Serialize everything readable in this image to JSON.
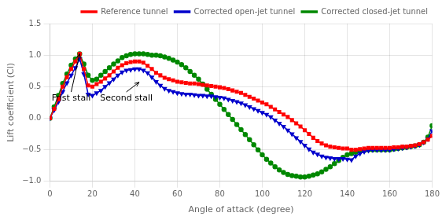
{
  "chart_data": {
    "type": "line",
    "xlabel": "Angle of attack (degree)",
    "ylabel": "Lift coefficient (Cl)",
    "xlim": [
      0,
      180
    ],
    "ylim": [
      -1.0,
      1.5
    ],
    "xticks": [
      0,
      20,
      40,
      60,
      80,
      100,
      120,
      140,
      160,
      180
    ],
    "yticks": [
      {
        "value": -1.0,
        "label": "−1.0"
      },
      {
        "value": -0.5,
        "label": "−0.5"
      },
      {
        "value": 0,
        "label": "0.0"
      },
      0.5,
      {
        "value": 1.0,
        "label": "1.0"
      },
      1.5
    ],
    "grid": true,
    "legend": "upper right",
    "annotations": [
      {
        "text": "Frist stall",
        "xy": [
          14,
          1.02
        ],
        "xytext": [
          10,
          0.28
        ]
      },
      {
        "text": "Second stall",
        "xy": [
          42,
          0.57
        ],
        "xytext": [
          36,
          0.28
        ]
      }
    ],
    "x": [
      0,
      2,
      4,
      6,
      8,
      10,
      12,
      14,
      16,
      18,
      20,
      22,
      24,
      26,
      28,
      30,
      32,
      34,
      36,
      38,
      40,
      42,
      44,
      46,
      48,
      50,
      52,
      54,
      56,
      58,
      60,
      62,
      64,
      66,
      68,
      70,
      72,
      74,
      76,
      78,
      80,
      82,
      84,
      86,
      88,
      90,
      92,
      94,
      96,
      98,
      100,
      102,
      104,
      106,
      108,
      110,
      112,
      114,
      116,
      118,
      120,
      122,
      124,
      126,
      128,
      130,
      132,
      134,
      136,
      138,
      140,
      142,
      144,
      146,
      148,
      150,
      152,
      154,
      156,
      158,
      160,
      162,
      164,
      166,
      168,
      170,
      172,
      174,
      176,
      178,
      180
    ],
    "series": [
      {
        "name": "Reference tunnel",
        "color": "#ff0000",
        "marker": "square",
        "values": [
          0.0,
          0.15,
          0.3,
          0.5,
          0.65,
          0.78,
          0.9,
          1.02,
          0.78,
          0.52,
          0.5,
          0.54,
          0.58,
          0.63,
          0.68,
          0.74,
          0.8,
          0.84,
          0.87,
          0.89,
          0.9,
          0.9,
          0.88,
          0.83,
          0.78,
          0.72,
          0.68,
          0.64,
          0.62,
          0.6,
          0.58,
          0.57,
          0.56,
          0.55,
          0.55,
          0.54,
          0.53,
          0.52,
          0.51,
          0.5,
          0.49,
          0.48,
          0.46,
          0.44,
          0.42,
          0.4,
          0.37,
          0.34,
          0.31,
          0.28,
          0.25,
          0.22,
          0.18,
          0.14,
          0.1,
          0.06,
          0.02,
          -0.03,
          -0.08,
          -0.13,
          -0.19,
          -0.25,
          -0.31,
          -0.36,
          -0.4,
          -0.43,
          -0.45,
          -0.46,
          -0.47,
          -0.48,
          -0.48,
          -0.5,
          -0.5,
          -0.49,
          -0.48,
          -0.47,
          -0.47,
          -0.47,
          -0.47,
          -0.47,
          -0.47,
          -0.46,
          -0.46,
          -0.45,
          -0.45,
          -0.44,
          -0.43,
          -0.41,
          -0.38,
          -0.34,
          -0.28
        ]
      },
      {
        "name": "Corrected open-jet tunnel",
        "color": "#0000cc",
        "marker": "triangle_down",
        "values": [
          0.0,
          0.13,
          0.26,
          0.42,
          0.56,
          0.68,
          0.8,
          0.94,
          0.7,
          0.38,
          0.36,
          0.4,
          0.44,
          0.5,
          0.56,
          0.62,
          0.68,
          0.73,
          0.76,
          0.77,
          0.78,
          0.78,
          0.76,
          0.72,
          0.65,
          0.58,
          0.52,
          0.47,
          0.44,
          0.42,
          0.4,
          0.39,
          0.38,
          0.38,
          0.37,
          0.36,
          0.36,
          0.35,
          0.35,
          0.34,
          0.33,
          0.32,
          0.3,
          0.28,
          0.26,
          0.24,
          0.21,
          0.18,
          0.15,
          0.12,
          0.09,
          0.06,
          0.02,
          -0.03,
          -0.08,
          -0.13,
          -0.19,
          -0.25,
          -0.31,
          -0.37,
          -0.43,
          -0.49,
          -0.54,
          -0.57,
          -0.6,
          -0.62,
          -0.63,
          -0.64,
          -0.64,
          -0.64,
          -0.65,
          -0.66,
          -0.6,
          -0.56,
          -0.53,
          -0.51,
          -0.5,
          -0.5,
          -0.5,
          -0.5,
          -0.5,
          -0.49,
          -0.48,
          -0.47,
          -0.46,
          -0.45,
          -0.44,
          -0.42,
          -0.38,
          -0.33,
          -0.2
        ]
      },
      {
        "name": "Corrected closed-jet tunnel",
        "color": "#008800",
        "marker": "circle",
        "values": [
          0.0,
          0.18,
          0.36,
          0.55,
          0.7,
          0.84,
          0.94,
          1.02,
          0.86,
          0.68,
          0.6,
          0.62,
          0.68,
          0.74,
          0.8,
          0.86,
          0.91,
          0.96,
          0.99,
          1.01,
          1.02,
          1.02,
          1.02,
          1.01,
          1.0,
          1.0,
          0.99,
          0.97,
          0.95,
          0.92,
          0.89,
          0.85,
          0.8,
          0.74,
          0.68,
          0.62,
          0.54,
          0.46,
          0.38,
          0.3,
          0.22,
          0.14,
          0.06,
          -0.02,
          -0.1,
          -0.18,
          -0.26,
          -0.34,
          -0.42,
          -0.5,
          -0.58,
          -0.65,
          -0.71,
          -0.77,
          -0.82,
          -0.86,
          -0.89,
          -0.91,
          -0.92,
          -0.93,
          -0.93,
          -0.92,
          -0.9,
          -0.88,
          -0.85,
          -0.81,
          -0.77,
          -0.72,
          -0.67,
          -0.62,
          -0.58,
          -0.56,
          -0.54,
          -0.52,
          -0.51,
          -0.5,
          -0.5,
          -0.5,
          -0.5,
          -0.5,
          -0.5,
          -0.49,
          -0.48,
          -0.47,
          -0.46,
          -0.45,
          -0.44,
          -0.42,
          -0.38,
          -0.3,
          -0.12
        ]
      }
    ]
  }
}
